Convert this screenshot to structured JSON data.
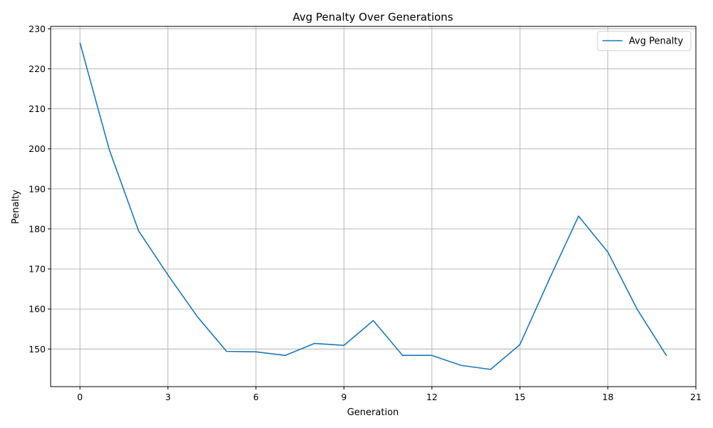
{
  "chart_data": {
    "type": "line",
    "title": "Avg Penalty Over Generations",
    "xlabel": "Generation",
    "ylabel": "Penalty",
    "xlim": [
      -1.0,
      21
    ],
    "ylim": [
      140.6,
      230.6
    ],
    "xticks": [
      0,
      3,
      6,
      9,
      12,
      15,
      18,
      21
    ],
    "yticks": [
      150,
      160,
      170,
      180,
      190,
      200,
      210,
      220,
      230
    ],
    "grid": true,
    "legend_position": "top-right",
    "x": [
      0,
      1,
      2,
      3,
      4,
      5,
      6,
      7,
      8,
      9,
      10,
      11,
      12,
      13,
      14,
      15,
      16,
      17,
      18,
      19,
      20
    ],
    "series": [
      {
        "name": "Avg Penalty",
        "color": "#1f77b4",
        "values": [
          226.5,
          199.8,
          179.5,
          168.5,
          158.1,
          149.4,
          149.3,
          148.4,
          151.4,
          150.9,
          157.1,
          148.4,
          148.4,
          145.9,
          144.9,
          151.1,
          167.4,
          183.2,
          174.2,
          159.9,
          148.3
        ]
      }
    ]
  }
}
